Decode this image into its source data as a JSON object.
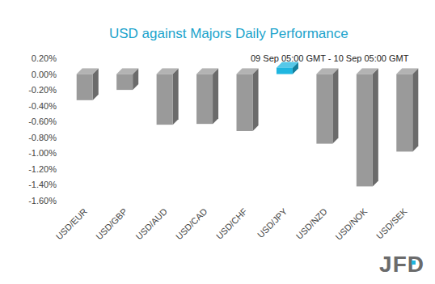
{
  "chart_data": {
    "type": "bar",
    "title": "USD against Majors Daily Performance",
    "subtitle": "09 Sep 05:00 GMT - 10 Sep 05:00 GMT",
    "categories": [
      "USD/EUR",
      "USD/GBP",
      "USD/AUD",
      "USD/CAD",
      "USD/CHF",
      "USD/JPY",
      "USD/NZD",
      "USD/NOK",
      "USD/SEK"
    ],
    "values": [
      -0.33,
      -0.2,
      -0.64,
      -0.63,
      -0.72,
      0.08,
      -0.88,
      -1.42,
      -0.98
    ],
    "colors": [
      "#9a9a9a",
      "#9a9a9a",
      "#9a9a9a",
      "#9a9a9a",
      "#9a9a9a",
      "#1fb6e0",
      "#9a9a9a",
      "#9a9a9a",
      "#9a9a9a"
    ],
    "ylim": [
      -1.6,
      0.2
    ],
    "yticks": [
      {
        "value": 0.2,
        "label": "0.20%"
      },
      {
        "value": 0,
        "label": "0.00%"
      },
      {
        "value": -0.2,
        "label": "-0.20%"
      },
      {
        "value": -0.4,
        "label": "-0.40%"
      },
      {
        "value": -0.6,
        "label": "-0.60%"
      },
      {
        "value": -0.8,
        "label": "-0.80%"
      },
      {
        "value": -1,
        "label": "-1.00%"
      },
      {
        "value": -1.2,
        "label": "-1.20%"
      },
      {
        "value": -1.4,
        "label": "-1.40%"
      },
      {
        "value": -1.6,
        "label": "-1.60%"
      }
    ],
    "grid": false,
    "annotations": [
      "JFD"
    ]
  }
}
